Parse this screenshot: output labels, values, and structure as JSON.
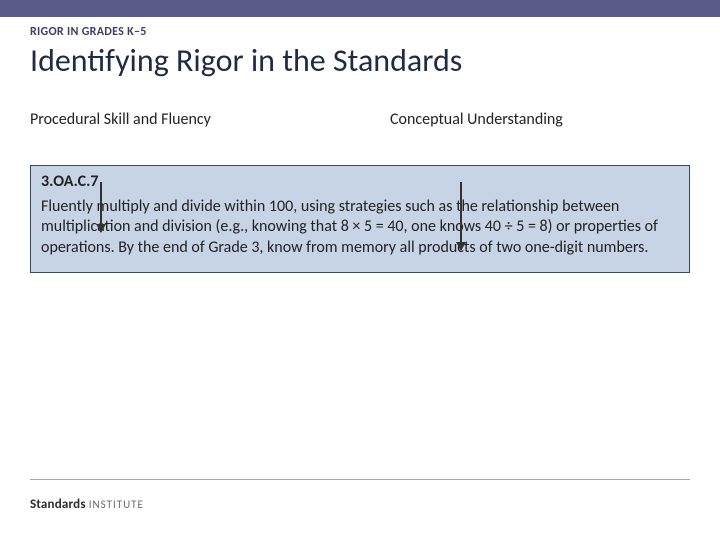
{
  "colors": {
    "topbar": "#5b5b8c",
    "eyebrow": "#3e3e66",
    "title": "#1f2a44",
    "text": "#222222",
    "box_bg": "#c6d4e6",
    "box_border": "#3a4a66"
  },
  "eyebrow": "RIGOR IN GRADES K–5",
  "title": "Identifying Rigor in the Standards",
  "columns": {
    "left": "Procedural Skill and Fluency",
    "right": "Conceptual Understanding"
  },
  "standard": {
    "code": "3.OA.C.7",
    "body": "Fluently multiply and divide within 100, using strategies such as the relationship between multiplication and division (e.g., knowing that 8 × 5 = 40, one knows 40 ÷ 5 = 8) or properties of operations. By the end of Grade 3, know from memory all products of two one-digit numbers."
  },
  "logo": {
    "brand": "Standards",
    "sub": "INSTITUTE"
  }
}
